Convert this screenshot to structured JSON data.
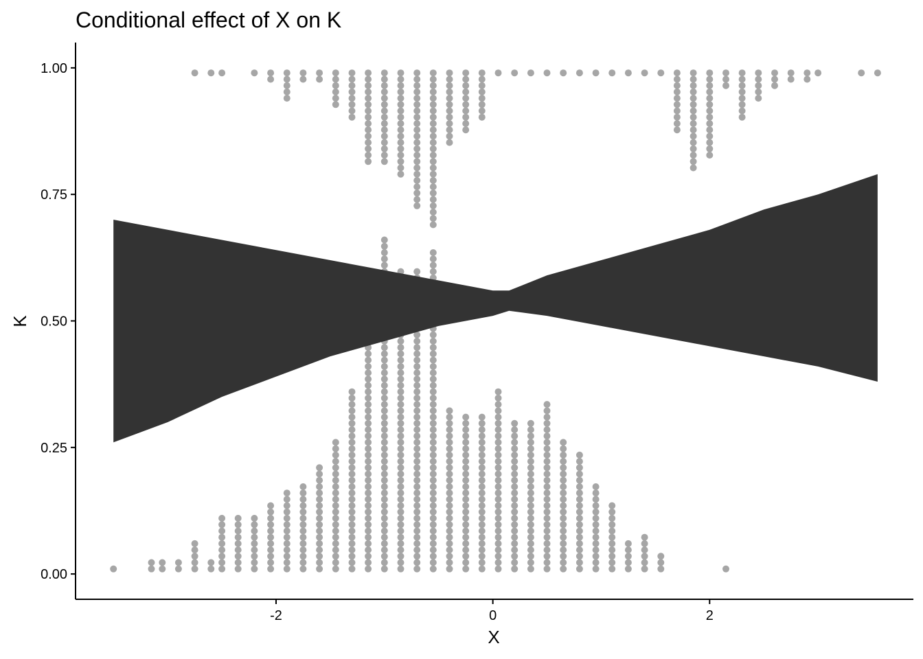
{
  "chart_data": {
    "type": "scatter",
    "title": "Conditional effect of X on K",
    "xlabel": "X",
    "ylabel": "K",
    "xlim": [
      -3.85,
      3.88
    ],
    "ylim": [
      -0.05,
      1.05
    ],
    "x_ticks": [
      {
        "value": -2,
        "label": "-2"
      },
      {
        "value": 0,
        "label": "0"
      },
      {
        "value": 2,
        "label": "2"
      }
    ],
    "y_ticks": [
      {
        "value": 0,
        "label": "0.00"
      },
      {
        "value": 0.25,
        "label": "0.25"
      },
      {
        "value": 0.5,
        "label": "0.50"
      },
      {
        "value": 0.75,
        "label": "0.75"
      },
      {
        "value": 1,
        "label": "1.00"
      }
    ],
    "grid": false,
    "legend": "none",
    "colors": {
      "points": "#a6a6a6",
      "ribbon": "#333333",
      "axis": "#000000",
      "background": "#ffffff"
    },
    "point_columns": [
      {
        "x": -3.5,
        "top": null,
        "bottom": 0.01
      },
      {
        "x": -3.15,
        "top": null,
        "bottom": 0.03
      },
      {
        "x": -3.05,
        "top": null,
        "bottom": 0.03
      },
      {
        "x": -2.9,
        "top": null,
        "bottom": 0.03
      },
      {
        "x": -2.75,
        "top": 0.99,
        "bottom": 0.06
      },
      {
        "x": -2.6,
        "top": 0.99,
        "bottom": 0.03
      },
      {
        "x": -2.5,
        "top": 0.99,
        "bottom": 0.11
      },
      {
        "x": -2.35,
        "top": null,
        "bottom": 0.11
      },
      {
        "x": -2.2,
        "top": 0.98,
        "bottom": 0.11
      },
      {
        "x": -2.05,
        "top": 0.97,
        "bottom": 0.14
      },
      {
        "x": -1.9,
        "top": 0.94,
        "bottom": 0.16
      },
      {
        "x": -1.75,
        "top": 0.97,
        "bottom": 0.18
      },
      {
        "x": -1.6,
        "top": 0.97,
        "bottom": 0.22
      },
      {
        "x": -1.45,
        "top": 0.92,
        "bottom": 0.26
      },
      {
        "x": -1.3,
        "top": 0.9,
        "bottom": 0.36
      },
      {
        "x": -1.15,
        "top": 0.81,
        "bottom": 0.45
      },
      {
        "x": -1.0,
        "top": 0.81,
        "bottom": 0.66
      },
      {
        "x": -0.85,
        "top": 0.78,
        "bottom": 0.6
      },
      {
        "x": -0.7,
        "top": 0.72,
        "bottom": 0.6
      },
      {
        "x": -0.55,
        "top": 0.69,
        "bottom": 0.64
      },
      {
        "x": -0.4,
        "top": 0.85,
        "bottom": 0.33
      },
      {
        "x": -0.25,
        "top": 0.87,
        "bottom": 0.32
      },
      {
        "x": -0.1,
        "top": 0.9,
        "bottom": 0.31
      },
      {
        "x": 0.05,
        "top": 0.99,
        "bottom": 0.36
      },
      {
        "x": 0.2,
        "top": 0.99,
        "bottom": 0.3
      },
      {
        "x": 0.35,
        "top": 0.99,
        "bottom": 0.3
      },
      {
        "x": 0.5,
        "top": 0.99,
        "bottom": 0.34
      },
      {
        "x": 0.65,
        "top": 0.99,
        "bottom": 0.27
      },
      {
        "x": 0.8,
        "top": 0.99,
        "bottom": 0.24
      },
      {
        "x": 0.95,
        "top": 0.99,
        "bottom": 0.18
      },
      {
        "x": 1.1,
        "top": 0.99,
        "bottom": 0.14
      },
      {
        "x": 1.25,
        "top": 0.99,
        "bottom": 0.07
      },
      {
        "x": 1.4,
        "top": 0.99,
        "bottom": 0.08
      },
      {
        "x": 1.55,
        "top": 0.99,
        "bottom": 0.04
      },
      {
        "x": 1.7,
        "top": 0.87,
        "bottom": null
      },
      {
        "x": 1.85,
        "top": 0.8,
        "bottom": null
      },
      {
        "x": 2.0,
        "top": 0.82,
        "bottom": null
      },
      {
        "x": 2.15,
        "top": 0.96,
        "bottom": 0.01
      },
      {
        "x": 2.3,
        "top": 0.9,
        "bottom": null
      },
      {
        "x": 2.45,
        "top": 0.93,
        "bottom": null
      },
      {
        "x": 2.6,
        "top": 0.96,
        "bottom": null
      },
      {
        "x": 2.75,
        "top": 0.97,
        "bottom": null
      },
      {
        "x": 2.9,
        "top": 0.97,
        "bottom": null
      },
      {
        "x": 3.0,
        "top": 0.98,
        "bottom": null
      },
      {
        "x": 3.4,
        "top": 0.99,
        "bottom": null
      },
      {
        "x": 3.55,
        "top": 0.99,
        "bottom": null
      }
    ],
    "ribbon": {
      "x": [
        -3.5,
        -3.0,
        -2.5,
        -2.0,
        -1.5,
        -1.0,
        -0.5,
        0.0,
        0.15,
        0.5,
        1.0,
        1.5,
        2.0,
        2.5,
        3.0,
        3.55
      ],
      "upper": [
        0.7,
        0.68,
        0.66,
        0.64,
        0.62,
        0.6,
        0.58,
        0.56,
        0.56,
        0.59,
        0.62,
        0.65,
        0.68,
        0.72,
        0.75,
        0.79
      ],
      "lower": [
        0.26,
        0.3,
        0.35,
        0.39,
        0.43,
        0.46,
        0.49,
        0.51,
        0.52,
        0.51,
        0.49,
        0.47,
        0.45,
        0.43,
        0.41,
        0.38
      ]
    }
  }
}
